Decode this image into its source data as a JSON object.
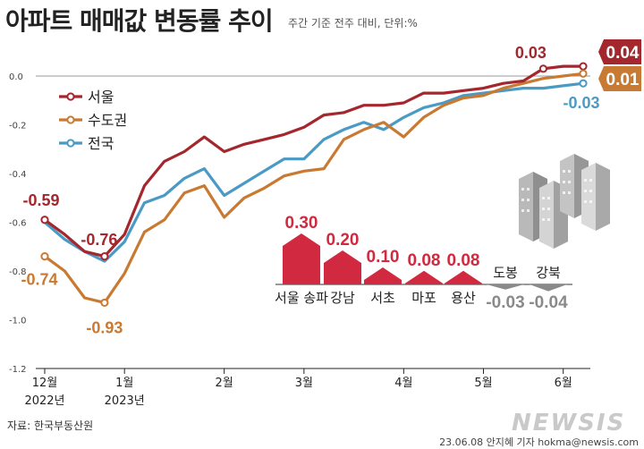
{
  "header": {
    "title": "아파트 매매값 변동률 추이",
    "subtitle": "주간 기준 전주 대비, 단위:%"
  },
  "footer": {
    "source": "자료: 한국부동산원",
    "credit": "23.06.08 안지혜 기자 hokma@newsis.com",
    "watermark": "NEWSIS"
  },
  "colors": {
    "seoul": "#a3272d",
    "capital": "#c97a32",
    "national": "#4a9ac6",
    "inset_bar": "#d1293f",
    "inset_neg": "#8a8a8a",
    "badge_seoul": "#a3272d",
    "badge_capital": "#c97a32"
  },
  "chart_data": [
    {
      "type": "line",
      "x_ticks": [
        "12월",
        "1월",
        "2월",
        "3월",
        "4월",
        "5월",
        "6월"
      ],
      "x_year_labels": [
        "2022년",
        "2023년"
      ],
      "ylim": [
        -1.2,
        0.1
      ],
      "y_ticks": [
        0.0,
        -0.2,
        -0.4,
        -0.6,
        -0.8,
        -1.0,
        -1.2
      ],
      "y_tick_labels": [
        "0.0",
        "-0.2",
        "-0.4",
        "-0.6",
        "-0.8",
        "-1.0",
        "-1.2"
      ],
      "grid": false,
      "legend": "top-left",
      "series": [
        {
          "name": "서울",
          "color_key": "seoul",
          "values": [
            -0.59,
            -0.65,
            -0.72,
            -0.74,
            -0.65,
            -0.45,
            -0.35,
            -0.31,
            -0.25,
            -0.31,
            -0.28,
            -0.26,
            -0.24,
            -0.21,
            -0.16,
            -0.15,
            -0.12,
            -0.12,
            -0.11,
            -0.07,
            -0.07,
            -0.06,
            -0.05,
            -0.03,
            -0.02,
            0.03,
            0.04,
            0.04
          ]
        },
        {
          "name": "수도권",
          "color_key": "capital",
          "values": [
            -0.74,
            -0.8,
            -0.91,
            -0.93,
            -0.81,
            -0.64,
            -0.59,
            -0.48,
            -0.45,
            -0.58,
            -0.5,
            -0.46,
            -0.41,
            -0.39,
            -0.38,
            -0.26,
            -0.22,
            -0.19,
            -0.25,
            -0.17,
            -0.12,
            -0.09,
            -0.08,
            -0.05,
            -0.03,
            -0.01,
            0.0,
            0.01
          ]
        },
        {
          "name": "전국",
          "color_key": "national",
          "values": [
            -0.6,
            -0.67,
            -0.72,
            -0.76,
            -0.68,
            -0.52,
            -0.49,
            -0.42,
            -0.38,
            -0.49,
            -0.44,
            -0.39,
            -0.34,
            -0.34,
            -0.26,
            -0.22,
            -0.19,
            -0.22,
            -0.17,
            -0.13,
            -0.11,
            -0.08,
            -0.07,
            -0.06,
            -0.05,
            -0.05,
            -0.04,
            -0.03
          ]
        }
      ],
      "annotations": [
        {
          "text": "-0.59",
          "series": 0,
          "index": 0,
          "color_key": "seoul"
        },
        {
          "text": "-0.74",
          "series": 1,
          "index": 0,
          "color_key": "capital"
        },
        {
          "text": "-0.76",
          "series": 2,
          "index": 3,
          "color_key": "seoul"
        },
        {
          "text": "-0.93",
          "series": 1,
          "index": 3,
          "color_key": "capital"
        },
        {
          "text": "0.03",
          "series": 0,
          "index": 25,
          "color_key": "seoul"
        },
        {
          "text": "-0.03",
          "series": 2,
          "index": 27,
          "color_key": "national"
        }
      ],
      "end_badges": [
        {
          "text": "0.04",
          "series": 0,
          "color_key": "badge_seoul"
        },
        {
          "text": "0.01",
          "series": 1,
          "color_key": "badge_capital"
        }
      ]
    },
    {
      "type": "bar",
      "categories": [
        "서울 송파",
        "강남",
        "서초",
        "마포",
        "용산",
        "도봉",
        "강북"
      ],
      "values": [
        0.3,
        0.2,
        0.1,
        0.08,
        0.08,
        -0.03,
        -0.04
      ],
      "value_labels": [
        "0.30",
        "0.20",
        "0.10",
        "0.08",
        "0.08",
        "-0.03",
        "-0.04"
      ]
    }
  ]
}
